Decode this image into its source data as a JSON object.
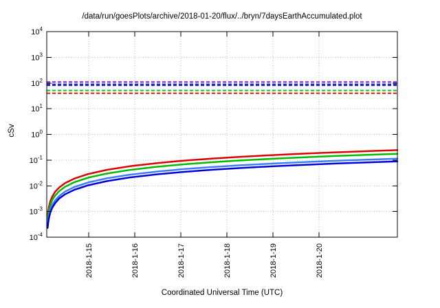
{
  "chart_data": {
    "type": "line",
    "title": "/data/run/goesPlots/archive/2018-01-20/flux/../bryn/7daysEarthAccumulated.plot",
    "xlabel": "Coordinated Universal Time (UTC)",
    "ylabel": "cSv",
    "x_axis": {
      "unit": "days_from_plot_left_edge",
      "min": 0,
      "max": 7.61,
      "ticks": [
        {
          "label": "2018-1-15",
          "d": 0.91
        },
        {
          "label": "2018-1-16",
          "d": 1.91
        },
        {
          "label": "2018-1-17",
          "d": 2.91
        },
        {
          "label": "2018-1-18",
          "d": 3.91
        },
        {
          "label": "2018-1-19",
          "d": 4.91
        },
        {
          "label": "2018-1-20",
          "d": 5.91
        }
      ]
    },
    "y_axis": {
      "scale": "log",
      "min": 0.0001,
      "max": 10000,
      "tick_exponents": [
        4,
        3,
        2,
        1,
        0,
        -1,
        -2,
        -3,
        -4
      ]
    },
    "grid": {
      "show": true,
      "color": "#b4b4b4"
    },
    "limit_lines": [
      {
        "name": "purple-threshold",
        "value": 110,
        "color": "#8a22cc",
        "width": 2,
        "style": "dashed"
      },
      {
        "name": "blue-threshold",
        "value": 85,
        "color": "#2222dd",
        "width": 3.5,
        "style": "dashed"
      },
      {
        "name": "green-threshold",
        "value": 51,
        "color": "#00cc00",
        "width": 2,
        "style": "dashed"
      },
      {
        "name": "red-threshold",
        "value": 40,
        "color": "#ee1111",
        "width": 2,
        "style": "dashed"
      }
    ],
    "series": [
      {
        "name": "red-accumulated",
        "color": "#dd0000",
        "width": 2.5,
        "d": [
          0.02,
          0.03,
          0.05,
          0.08,
          0.12,
          0.18,
          0.27,
          0.4,
          0.6,
          0.9,
          1.3,
          1.8,
          2.4,
          3.0,
          3.6,
          4.2,
          4.9,
          5.6,
          6.3,
          7.0,
          7.61
        ],
        "v": [
          0.00064,
          0.00096,
          0.0016,
          0.0026,
          0.0038,
          0.0058,
          0.0086,
          0.0128,
          0.0192,
          0.0288,
          0.0416,
          0.0576,
          0.0768,
          0.096,
          0.115,
          0.134,
          0.157,
          0.179,
          0.202,
          0.224,
          0.244
        ]
      },
      {
        "name": "green-accumulated",
        "color": "#00bb00",
        "width": 2.5,
        "d": [
          0.02,
          0.03,
          0.05,
          0.08,
          0.12,
          0.18,
          0.27,
          0.4,
          0.6,
          0.9,
          1.3,
          1.8,
          2.4,
          3.0,
          3.6,
          4.2,
          4.9,
          5.6,
          6.3,
          7.0,
          7.61
        ],
        "v": [
          0.00046,
          0.00069,
          0.00115,
          0.0018,
          0.0028,
          0.0041,
          0.0062,
          0.0092,
          0.0138,
          0.0207,
          0.0299,
          0.0414,
          0.0552,
          0.069,
          0.0828,
          0.0966,
          0.113,
          0.129,
          0.145,
          0.161,
          0.175
        ]
      },
      {
        "name": "lightblue-accumulated",
        "color": "#3b7cff",
        "width": 2.5,
        "d": [
          0.02,
          0.03,
          0.05,
          0.08,
          0.12,
          0.18,
          0.27,
          0.4,
          0.6,
          0.9,
          1.3,
          1.8,
          2.4,
          3.0,
          3.6,
          4.2,
          4.9,
          5.6,
          6.3,
          7.0,
          7.61
        ],
        "v": [
          0.0003,
          0.00045,
          0.00075,
          0.0012,
          0.0018,
          0.0027,
          0.004,
          0.006,
          0.009,
          0.0135,
          0.0195,
          0.027,
          0.036,
          0.045,
          0.054,
          0.063,
          0.0735,
          0.084,
          0.0945,
          0.105,
          0.114
        ]
      },
      {
        "name": "darkblue-accumulated",
        "color": "#0000dd",
        "width": 2.5,
        "d": [
          0.02,
          0.03,
          0.05,
          0.08,
          0.12,
          0.18,
          0.27,
          0.4,
          0.6,
          0.9,
          1.3,
          1.8,
          2.4,
          3.0,
          3.6,
          4.2,
          4.9,
          5.6,
          6.3,
          7.0,
          7.61
        ],
        "v": [
          0.00023,
          0.00035,
          0.00059,
          0.00094,
          0.0014,
          0.0021,
          0.0032,
          0.0047,
          0.007,
          0.0105,
          0.0152,
          0.0211,
          0.0281,
          0.0351,
          0.0421,
          0.0491,
          0.0573,
          0.0655,
          0.0737,
          0.0819,
          0.089
        ]
      }
    ]
  }
}
